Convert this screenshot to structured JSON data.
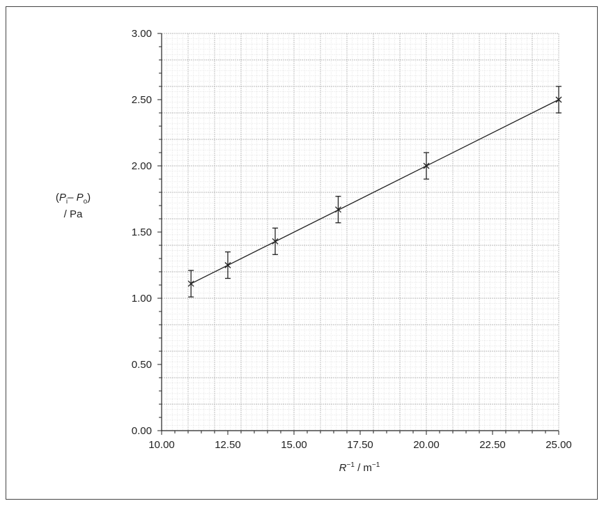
{
  "chart_data": {
    "type": "scatter",
    "xlabel": {
      "main": "R",
      "sup1": "−1",
      "rest": " / m",
      "sup2": "−1"
    },
    "ylabel": {
      "open": "(",
      "p1": "P",
      "s1": "i",
      "minus": "– ",
      "p2": "P",
      "s2": "o",
      "close": ")",
      "line2": "/ Pa"
    },
    "xlim": [
      10,
      25
    ],
    "ylim": [
      0,
      3
    ],
    "x_ticks": [
      "10.00",
      "12.50",
      "15.00",
      "17.50",
      "20.00",
      "22.50",
      "25.00"
    ],
    "y_ticks": [
      "0.00",
      "0.50",
      "1.00",
      "1.50",
      "2.00",
      "2.50",
      "3.00"
    ],
    "grid": true,
    "series": [
      {
        "x": [
          11.11,
          12.5,
          14.29,
          16.67,
          20.0,
          25.0
        ],
        "y": [
          1.11,
          1.25,
          1.43,
          1.67,
          2.0,
          2.5
        ],
        "error_y": [
          0.1,
          0.1,
          0.1,
          0.1,
          0.1,
          0.1
        ],
        "marker": "x"
      }
    ],
    "best_fit_line": {
      "x": [
        11.11,
        25.0
      ],
      "y": [
        1.11,
        2.5
      ]
    }
  }
}
